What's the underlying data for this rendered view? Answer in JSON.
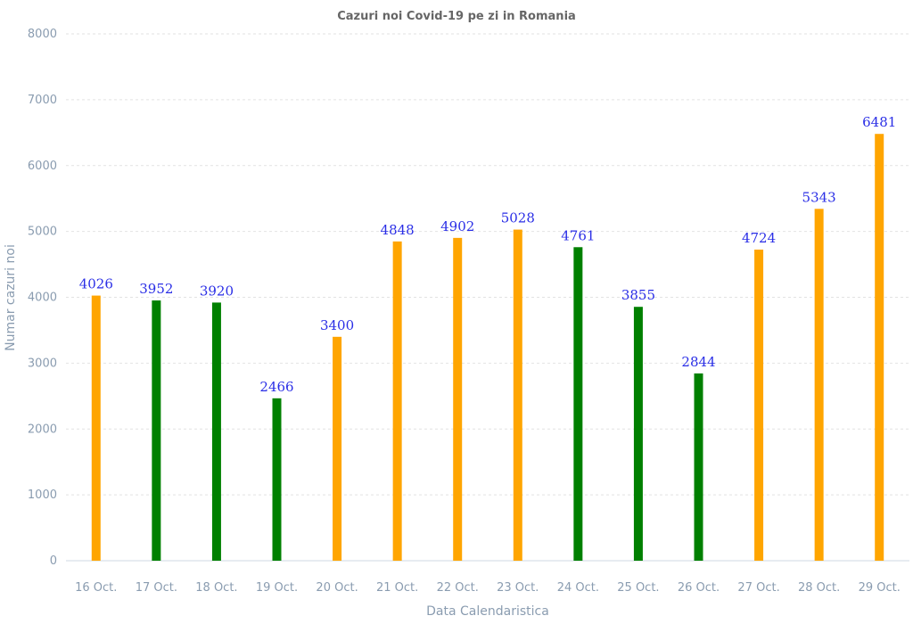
{
  "chart_data": {
    "type": "bar",
    "title": "Cazuri noi Covid-19 pe zi in Romania",
    "xlabel": "Data Calendaristica",
    "ylabel": "Numar cazuri noi",
    "ylim": [
      0,
      8000
    ],
    "yticks": [
      0,
      1000,
      2000,
      3000,
      4000,
      5000,
      6000,
      7000,
      8000
    ],
    "grid": true,
    "legend": "none",
    "categories": [
      "16 Oct.",
      "17 Oct.",
      "18 Oct.",
      "19 Oct.",
      "20 Oct.",
      "21 Oct.",
      "22 Oct.",
      "23 Oct.",
      "24 Oct.",
      "25 Oct.",
      "26 Oct.",
      "27 Oct.",
      "28 Oct.",
      "29 Oct."
    ],
    "values": [
      4026,
      3952,
      3920,
      2466,
      3400,
      4848,
      4902,
      5028,
      4761,
      3855,
      2844,
      4724,
      5343,
      6481
    ],
    "bar_colors": [
      "#ffa500",
      "#008000",
      "#008000",
      "#008000",
      "#ffa500",
      "#ffa500",
      "#ffa500",
      "#ffa500",
      "#008000",
      "#008000",
      "#008000",
      "#ffa500",
      "#ffa500",
      "#ffa500"
    ],
    "label_color": "#2a2ee6",
    "axis_text_color": "#8a9cb0",
    "title_color": "#666666"
  }
}
